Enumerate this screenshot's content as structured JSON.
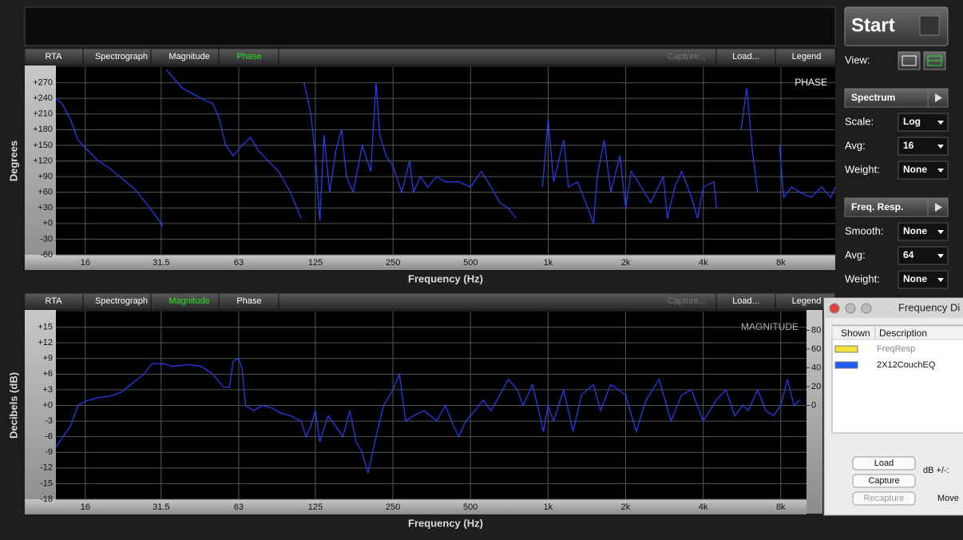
{
  "chart_data": [
    {
      "type": "line",
      "corner_label": "PHASE",
      "xlabel": "Frequency (Hz)",
      "ylabel": "Degrees",
      "xscale": "log",
      "grid": true,
      "xlim": [
        12.3,
        13000
      ],
      "ylim": [
        -60,
        300
      ],
      "xticks": [
        16,
        31.5,
        63,
        125,
        250,
        500,
        {
          "value": 1000,
          "label": "1k"
        },
        {
          "value": 2000,
          "label": "2k"
        },
        {
          "value": 4000,
          "label": "4k"
        },
        {
          "value": 8000,
          "label": "8k"
        }
      ],
      "yticks": [
        -60,
        -30,
        {
          "value": 0,
          "label": "+0"
        },
        {
          "value": 30,
          "label": "+30"
        },
        {
          "value": 60,
          "label": "+60"
        },
        {
          "value": 90,
          "label": "+90"
        },
        {
          "value": 120,
          "label": "+120"
        },
        {
          "value": 150,
          "label": "+150"
        },
        {
          "value": 180,
          "label": "+180"
        },
        {
          "value": 210,
          "label": "+210"
        },
        {
          "value": 240,
          "label": "+240"
        },
        {
          "value": 270,
          "label": "+270"
        }
      ],
      "x": [
        12.3,
        13,
        14,
        15,
        16,
        18,
        20,
        23,
        25,
        28,
        30,
        32,
        32.5,
        33,
        38,
        45,
        50,
        53,
        56,
        60,
        65,
        70,
        75,
        82,
        90,
        100,
        110,
        111,
        113,
        120,
        125,
        130,
        135,
        142,
        150,
        158,
        165,
        175,
        190,
        205,
        215,
        222,
        235,
        250,
        270,
        290,
        300,
        320,
        340,
        370,
        400,
        450,
        500,
        550,
        600,
        650,
        700,
        750,
        800,
        950,
        1000,
        1050,
        1150,
        1200,
        1300,
        1400,
        1500,
        1550,
        1650,
        1750,
        1900,
        2000,
        2100,
        2300,
        2500,
        2800,
        2900,
        3100,
        3300,
        3600,
        3800,
        4000,
        4400,
        4500,
        5000,
        5600,
        5900,
        6200,
        6500,
        7000,
        7900,
        8200,
        8800,
        9500,
        10500,
        11500,
        12500,
        13000
      ],
      "series": [
        {
          "color": "#2a3cff",
          "values": [
            240,
            230,
            200,
            160,
            145,
            120,
            105,
            80,
            65,
            35,
            15,
            -5,
            null,
            295,
            260,
            240,
            230,
            200,
            150,
            130,
            150,
            165,
            140,
            120,
            100,
            60,
            10,
            null,
            270,
            210,
            130,
            5,
            170,
            60,
            140,
            180,
            90,
            60,
            150,
            100,
            270,
            170,
            130,
            110,
            60,
            120,
            60,
            90,
            70,
            90,
            80,
            80,
            70,
            100,
            70,
            40,
            30,
            10,
            null,
            70,
            200,
            80,
            160,
            70,
            80,
            40,
            0,
            90,
            160,
            60,
            130,
            30,
            100,
            70,
            40,
            90,
            10,
            70,
            100,
            50,
            10,
            70,
            80,
            30,
            null,
            180,
            260,
            140,
            60,
            null,
            150,
            50,
            70,
            60,
            50,
            70,
            50,
            70
          ]
        }
      ]
    },
    {
      "type": "line",
      "corner_label": "MAGNITUDE",
      "xlabel": "Frequency (Hz)",
      "ylabel": "Decibels (dB)",
      "xscale": "log",
      "grid": true,
      "xlim": [
        12.3,
        10070
      ],
      "ylim": [
        -18,
        18
      ],
      "y2lim": [
        -100,
        100
      ],
      "xticks": [
        16,
        31.5,
        63,
        125,
        250,
        500,
        {
          "value": 1000,
          "label": "1k"
        },
        {
          "value": 2000,
          "label": "2k"
        },
        {
          "value": 4000,
          "label": "4k"
        },
        {
          "value": 8000,
          "label": "8k"
        }
      ],
      "yticks": [
        -18,
        -15,
        -12,
        -9,
        -6,
        -3,
        {
          "value": 0,
          "label": "+0"
        },
        {
          "value": 3,
          "label": "+3"
        },
        {
          "value": 6,
          "label": "+6"
        },
        {
          "value": 9,
          "label": "+9"
        },
        {
          "value": 12,
          "label": "+12"
        },
        {
          "value": 15,
          "label": "+15"
        }
      ],
      "y2ticks": [
        0,
        20,
        40,
        60,
        80
      ],
      "x": [
        12.3,
        14,
        15,
        16,
        18,
        20,
        22,
        24,
        27,
        29,
        32,
        35,
        40,
        45,
        50,
        55,
        58,
        60,
        63,
        65,
        67,
        72,
        78,
        85,
        92,
        100,
        110,
        115,
        120,
        125,
        130,
        140,
        150,
        160,
        170,
        180,
        190,
        200,
        215,
        230,
        250,
        265,
        280,
        300,
        330,
        370,
        400,
        430,
        450,
        480,
        520,
        560,
        600,
        650,
        700,
        760,
        800,
        870,
        920,
        960,
        1000,
        1050,
        1150,
        1250,
        1350,
        1500,
        1600,
        1750,
        2000,
        2200,
        2400,
        2700,
        3000,
        3300,
        3600,
        4000,
        4500,
        4900,
        5300,
        5700,
        6000,
        6500,
        7000,
        7500,
        8000,
        8500,
        9000,
        9500
      ],
      "series": [
        {
          "color": "#2a3cff",
          "values": [
            -8,
            -4,
            0,
            0.8,
            1.5,
            1.8,
            2.5,
            4,
            6,
            8,
            8,
            7.5,
            7.8,
            7.5,
            6,
            3.5,
            3.5,
            8.5,
            9,
            7,
            0,
            -1,
            0,
            -0.5,
            -1.5,
            -2,
            -3,
            -6,
            -4,
            -1,
            -7,
            -2,
            -4,
            -6,
            -1,
            -7,
            -9,
            -13,
            -6,
            0,
            3,
            6,
            -3,
            -2,
            -1,
            -3,
            0,
            -4,
            -6,
            -3,
            -1,
            1,
            -1,
            2,
            5,
            3,
            0,
            4,
            -1,
            -5,
            0,
            -3,
            3,
            -5,
            2,
            4,
            -1,
            4,
            2,
            -5,
            1,
            5,
            -3,
            2,
            3,
            -3,
            1,
            3,
            -2,
            0,
            -1,
            3,
            -1,
            -2,
            0,
            5,
            0,
            1
          ]
        }
      ]
    }
  ],
  "ui": {
    "panels": [
      {
        "tabs": [
          "RTA",
          "Spectrograph",
          "Magnitude",
          "Phase",
          "Capture...",
          "Load...",
          "Legend"
        ],
        "active_tab": 3,
        "disabled_tab": 4
      },
      {
        "tabs": [
          "RTA",
          "Spectrograph",
          "Magnitude",
          "Phase",
          "Capture...",
          "Load...",
          "Legend"
        ],
        "active_tab": 2,
        "disabled_tab": 4
      }
    ],
    "side": {
      "start": "Start",
      "view_label": "View:",
      "sections": [
        {
          "title": "Spectrum",
          "rows": [
            [
              "Scale:",
              "Log"
            ],
            [
              "Avg:",
              "16"
            ],
            [
              "Weight:",
              "None"
            ]
          ]
        },
        {
          "title": "Freq. Resp.",
          "rows": [
            [
              "Smooth:",
              "None"
            ],
            [
              "Avg:",
              "64"
            ],
            [
              "Weight:",
              "None"
            ]
          ]
        }
      ]
    },
    "dialog": {
      "title": "Frequency Di",
      "columns": [
        "Shown",
        "Description"
      ],
      "rows": [
        {
          "color": "#f2e33c",
          "label": "FreqResp"
        },
        {
          "color": "#1a5cff",
          "label": "2X12CouchEQ"
        }
      ],
      "buttons": [
        "Load",
        "Capture",
        "Recapture"
      ],
      "db_label": "dB +/-:",
      "move_label": "Move"
    }
  }
}
